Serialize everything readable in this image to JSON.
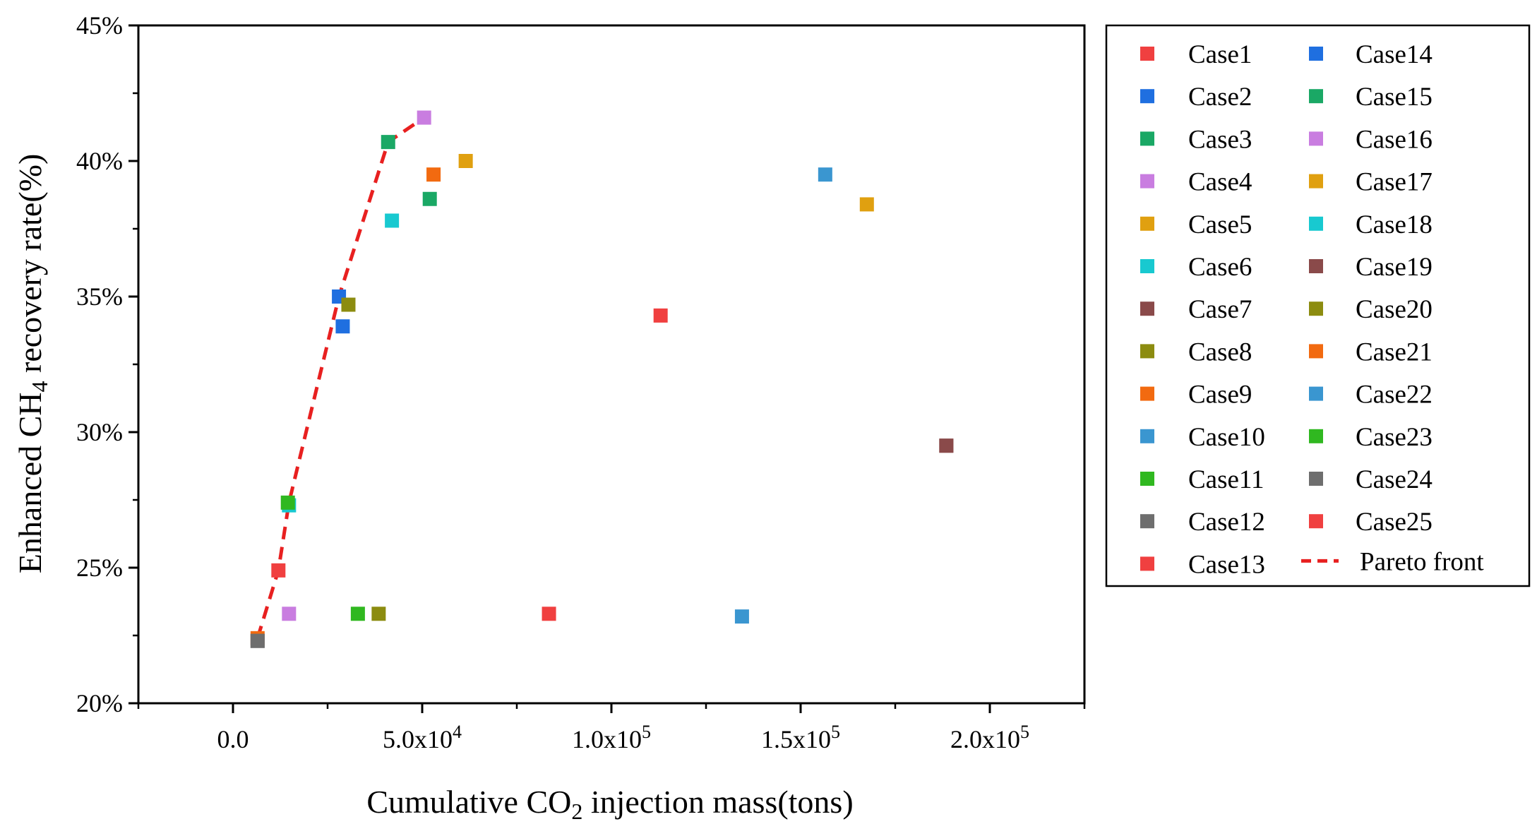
{
  "chart_data": {
    "type": "scatter",
    "title": "",
    "xlabel_parts": [
      "Cumulative CO",
      "2",
      " injection mass(tons)"
    ],
    "ylabel_parts": [
      "Enhanced CH",
      "4",
      " recovery rate(%)"
    ],
    "xlim": [
      -25000,
      225000
    ],
    "ylim": [
      20,
      45
    ],
    "x_ticks": [
      {
        "value": 0,
        "label": "0.0"
      },
      {
        "value": 50000,
        "base": "5.0x10",
        "exp": "4"
      },
      {
        "value": 100000,
        "base": "1.0x10",
        "exp": "5"
      },
      {
        "value": 150000,
        "base": "1.5x10",
        "exp": "5"
      },
      {
        "value": 200000,
        "base": "2.0x10",
        "exp": "5"
      }
    ],
    "y_ticks": [
      {
        "value": 20,
        "label": "20%"
      },
      {
        "value": 25,
        "label": "25%"
      },
      {
        "value": 30,
        "label": "30%"
      },
      {
        "value": 35,
        "label": "35%"
      },
      {
        "value": 40,
        "label": "40%"
      },
      {
        "value": 45,
        "label": "45%"
      }
    ],
    "series": [
      {
        "name": "Case1",
        "color": "#f04040",
        "x": 12000,
        "y": 24.9
      },
      {
        "name": "Case2",
        "color": "#1f6fe0",
        "x": 29000,
        "y": 33.9
      },
      {
        "name": "Case3",
        "color": "#1aa865",
        "x": 41000,
        "y": 40.7
      },
      {
        "name": "Case4",
        "color": "#c97de0",
        "x": 14800,
        "y": 23.3
      },
      {
        "name": "Case5",
        "color": "#e0a010",
        "x": 61500,
        "y": 40.0
      },
      {
        "name": "Case6",
        "color": "#18c9d0",
        "x": 14800,
        "y": 27.3
      },
      {
        "name": "Case7",
        "color": "#8a4a4a",
        "x": 188500,
        "y": 29.5
      },
      {
        "name": "Case8",
        "color": "#8c8c10",
        "x": 38500,
        "y": 23.3
      },
      {
        "name": "Case9",
        "color": "#f26a10",
        "x": 6500,
        "y": 22.4
      },
      {
        "name": "Case10",
        "color": "#3a96d0",
        "x": 134500,
        "y": 23.2
      },
      {
        "name": "Case11",
        "color": "#30b820",
        "x": 33000,
        "y": 23.3
      },
      {
        "name": "Case12",
        "color": "#6e6e6e",
        "x": 6500,
        "y": 22.3
      },
      {
        "name": "Case13",
        "color": "#f04040",
        "x": 83500,
        "y": 23.3
      },
      {
        "name": "Case14",
        "color": "#1f6fe0",
        "x": 28000,
        "y": 35.0
      },
      {
        "name": "Case15",
        "color": "#1aa865",
        "x": 52000,
        "y": 38.6
      },
      {
        "name": "Case16",
        "color": "#c97de0",
        "x": 50500,
        "y": 41.6
      },
      {
        "name": "Case17",
        "color": "#e0a010",
        "x": 167500,
        "y": 38.4
      },
      {
        "name": "Case18",
        "color": "#18c9d0",
        "x": 42000,
        "y": 37.8
      },
      {
        "name": "Case19",
        "color": "#8a4a4a",
        "x": 188500,
        "y": 29.5
      },
      {
        "name": "Case20",
        "color": "#8c8c10",
        "x": 30500,
        "y": 34.7
      },
      {
        "name": "Case21",
        "color": "#f26a10",
        "x": 53000,
        "y": 39.5
      },
      {
        "name": "Case22",
        "color": "#3a96d0",
        "x": 156500,
        "y": 39.5
      },
      {
        "name": "Case23",
        "color": "#30b820",
        "x": 14500,
        "y": 27.4
      },
      {
        "name": "Case24",
        "color": "#6e6e6e",
        "x": 6500,
        "y": 22.3
      },
      {
        "name": "Case25",
        "color": "#f04040",
        "x": 113000,
        "y": 34.3
      }
    ],
    "pareto_front": {
      "name": "Pareto front",
      "color": "#e82020",
      "x": [
        6500,
        12000,
        14800,
        28000,
        41000,
        50500
      ],
      "y": [
        22.4,
        24.9,
        27.4,
        35.0,
        40.7,
        41.6
      ]
    },
    "legend_position": "right-outside"
  }
}
